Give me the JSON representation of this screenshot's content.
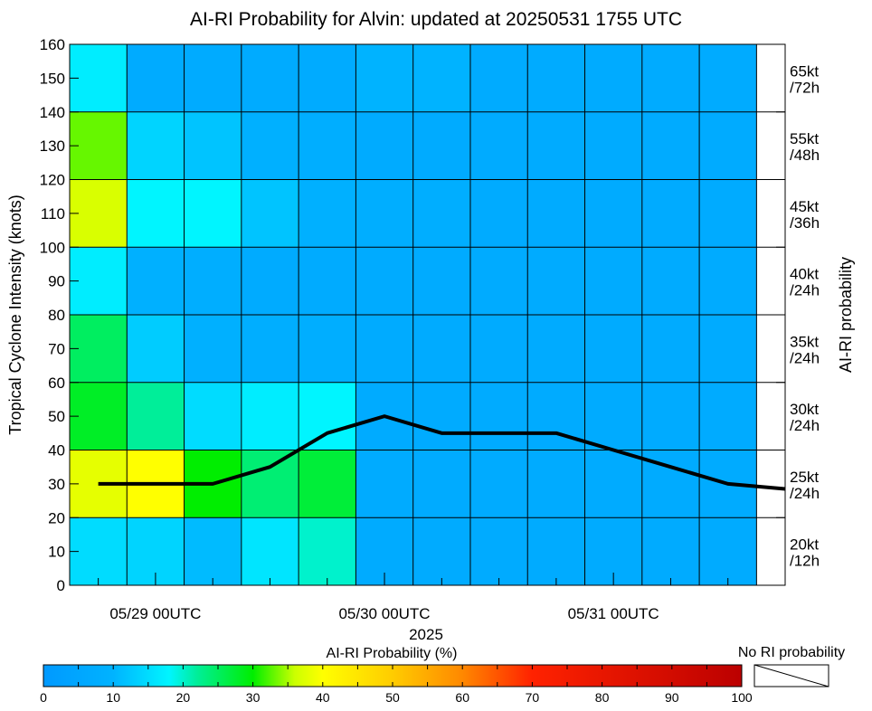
{
  "chart_data": {
    "type": "heatmap",
    "title": "AI-RI Probability for Alvin: updated at 20250531 1755 UTC",
    "ylabel": "Tropical Cyclone Intensity (knots)",
    "ylabel_right": "AI-RI probability",
    "year_label": "2025",
    "ylim": [
      0,
      160
    ],
    "y_ticks": [
      0,
      10,
      20,
      30,
      40,
      50,
      60,
      70,
      80,
      90,
      100,
      110,
      120,
      130,
      140,
      150,
      160
    ],
    "y_bins": [
      [
        0,
        20
      ],
      [
        20,
        40
      ],
      [
        40,
        60
      ],
      [
        60,
        80
      ],
      [
        80,
        100
      ],
      [
        100,
        120
      ],
      [
        120,
        140
      ],
      [
        140,
        160
      ]
    ],
    "x_time_labels": [
      {
        "label": "05/29 00UTC",
        "hour": 0
      },
      {
        "label": "05/30 00UTC",
        "hour": 24
      },
      {
        "label": "05/31 00UTC",
        "hour": 48
      }
    ],
    "x_range_hours": [
      -9,
      66
    ],
    "column_start_hours": [
      -9,
      -3,
      3,
      9,
      15,
      21,
      27,
      33,
      39,
      45,
      51,
      57
    ],
    "column_width_hours": 6,
    "probability_grid": [
      [
        15,
        14,
        11,
        16,
        20,
        7,
        7,
        7,
        7,
        7,
        7,
        7
      ],
      [
        38,
        40,
        30,
        24,
        27,
        7,
        7,
        7,
        7,
        7,
        7,
        7
      ],
      [
        28,
        22,
        15,
        17,
        18,
        7,
        7,
        7,
        7,
        7,
        7,
        7
      ],
      [
        25,
        13,
        9,
        8,
        8,
        7,
        7,
        7,
        7,
        7,
        7,
        7
      ],
      [
        17,
        9,
        8,
        7,
        7,
        7,
        7,
        7,
        7,
        7,
        7,
        7
      ],
      [
        37,
        18,
        18,
        12,
        9,
        8,
        8,
        7,
        7,
        7,
        7,
        7
      ],
      [
        33,
        14,
        12,
        9,
        8,
        7,
        7,
        7,
        7,
        7,
        7,
        7
      ],
      [
        17,
        7,
        7,
        7,
        7,
        10,
        10,
        7,
        7,
        7,
        7,
        7
      ]
    ],
    "intensity_track": {
      "hours": [
        -6,
        0,
        6,
        12,
        18,
        24,
        30,
        36,
        42,
        48,
        54,
        60,
        66
      ],
      "knots": [
        30,
        30,
        30,
        35,
        45,
        50,
        45,
        45,
        45,
        40,
        35,
        30,
        28.5
      ]
    },
    "ri_thresholds": [
      {
        "kt": "20kt",
        "h": "/12h"
      },
      {
        "kt": "25kt",
        "h": "/24h"
      },
      {
        "kt": "30kt",
        "h": "/24h"
      },
      {
        "kt": "35kt",
        "h": "/24h"
      },
      {
        "kt": "40kt",
        "h": "/24h"
      },
      {
        "kt": "45kt",
        "h": "/36h"
      },
      {
        "kt": "55kt",
        "h": "/48h"
      },
      {
        "kt": "65kt",
        "h": "/72h"
      }
    ],
    "colorbar": {
      "label": "AI-RI Probability (%)",
      "ticks": [
        0,
        10,
        20,
        30,
        40,
        50,
        60,
        70,
        80,
        90,
        100
      ],
      "range": [
        0,
        100
      ],
      "no_ri_label": "No RI probability"
    },
    "colors": {
      "p0": "#0099ff",
      "p10": "#00b3ff",
      "p18": "#00f5ff",
      "p22": "#00ee99",
      "p30": "#00ee00",
      "p36": "#ccff00",
      "p40": "#ffff00",
      "p50": "#ffcc00",
      "p60": "#ff8800",
      "p70": "#ff2200",
      "p100": "#bb0000",
      "track": "#000000",
      "grid": "#000000"
    }
  }
}
